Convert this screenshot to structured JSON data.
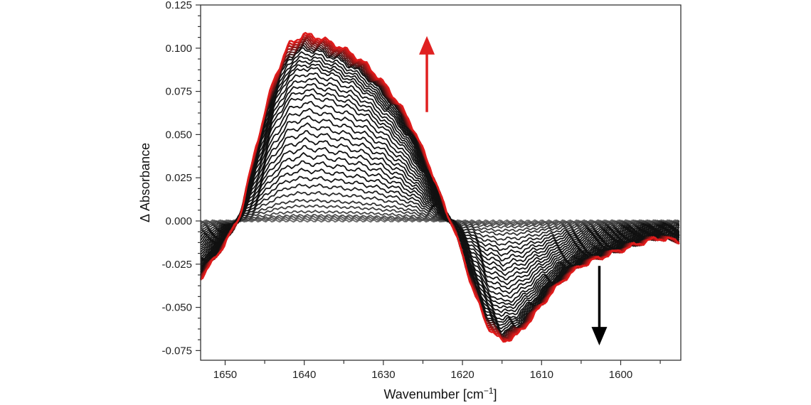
{
  "chart_data": {
    "type": "line",
    "title": "",
    "xlabel": "Wavenumber [cm",
    "xlabel_sup": "−1",
    "xlabel_end": "]",
    "ylabel": "Δ Absorbance",
    "xlim": [
      1653.1,
      1592.4
    ],
    "x_reversed": true,
    "ylim": [
      -0.0806,
      0.125
    ],
    "x_ticks": [
      1650,
      1640,
      1630,
      1620,
      1610,
      1600
    ],
    "x_tick_labels": [
      "1650",
      "1640",
      "1630",
      "1620",
      "1610",
      "1600"
    ],
    "y_ticks": [
      0.125,
      0.1,
      0.075,
      0.05,
      0.025,
      0.0,
      -0.025,
      -0.05,
      -0.075
    ],
    "y_tick_labels": [
      "0.125",
      "0.100",
      "0.075",
      "0.050",
      "0.025",
      "0.000",
      "-0.025",
      "-0.050",
      "-0.075"
    ],
    "grid": false,
    "legend": "none",
    "final_spectrum": {
      "x": [
        1653.1,
        1651,
        1649,
        1648,
        1646,
        1644,
        1642,
        1640,
        1638,
        1636,
        1634,
        1632,
        1630,
        1628,
        1626,
        1624,
        1622,
        1621,
        1619,
        1617,
        1615,
        1613,
        1611,
        1609,
        1607,
        1605,
        1603,
        1600,
        1597,
        1595,
        1592.4
      ],
      "y": [
        -0.033,
        -0.02,
        -0.005,
        0.005,
        0.045,
        0.08,
        0.102,
        0.108,
        0.106,
        0.102,
        0.097,
        0.09,
        0.08,
        0.068,
        0.052,
        0.03,
        0.005,
        -0.005,
        -0.035,
        -0.06,
        -0.07,
        -0.066,
        -0.055,
        -0.043,
        -0.033,
        -0.026,
        -0.022,
        -0.017,
        -0.012,
        -0.01,
        -0.012
      ]
    },
    "trace_scales": [
      0.0,
      0.01,
      0.02,
      0.03,
      0.05,
      0.08,
      0.11,
      0.15,
      0.19,
      0.23,
      0.27,
      0.31,
      0.35,
      0.39,
      0.43,
      0.47,
      0.51,
      0.55,
      0.59,
      0.63,
      0.67,
      0.7,
      0.73,
      0.76,
      0.79,
      0.82,
      0.84,
      0.86,
      0.88,
      0.9,
      0.92,
      0.93,
      0.94,
      0.95,
      0.96,
      0.97,
      0.98,
      0.99,
      1.0
    ],
    "colors": {
      "early": "#6b6b6b",
      "middle": "#111111",
      "late": "#e01b1b"
    },
    "annotations": [
      {
        "type": "arrow",
        "direction": "up",
        "color": "#e02020",
        "x": 1624.5,
        "y_from": 0.063,
        "y_to": 0.107
      },
      {
        "type": "arrow",
        "direction": "down",
        "color": "#000000",
        "x": 1602.7,
        "y_from": -0.026,
        "y_to": -0.072
      }
    ]
  }
}
